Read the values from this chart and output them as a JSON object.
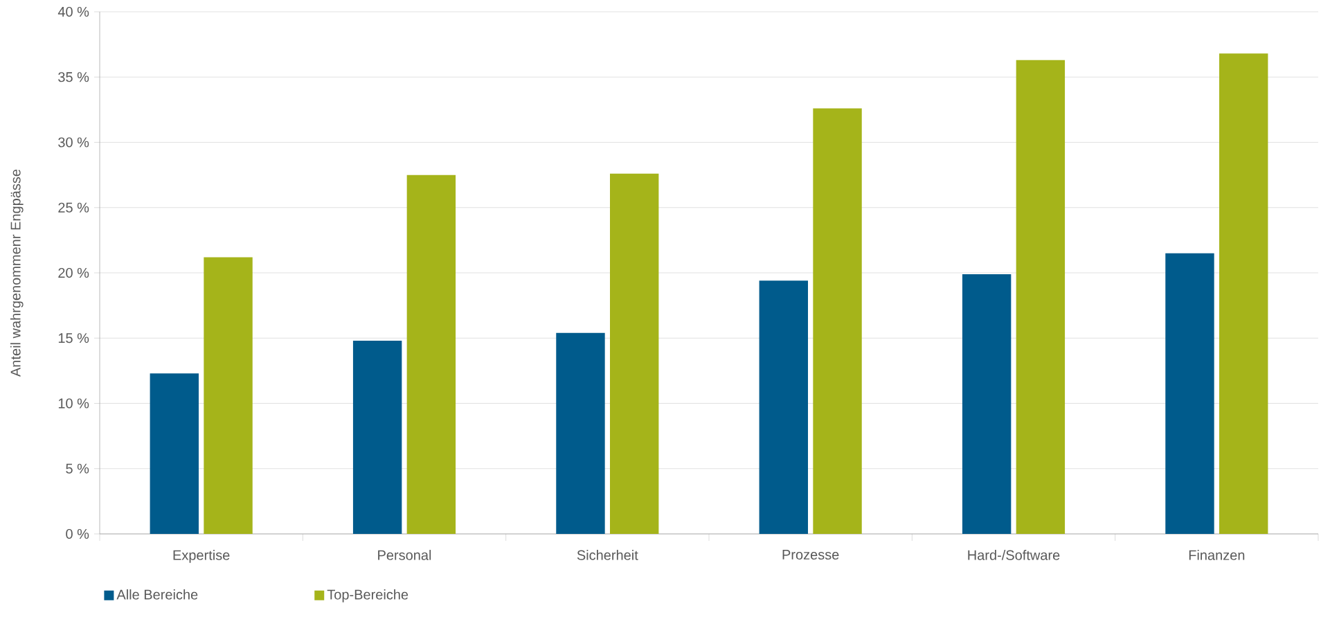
{
  "chart_data": {
    "type": "bar",
    "ylabel": "Anteil wahrgenommenr Engpässe",
    "categories": [
      "Expertise",
      "Personal",
      "Sicherheit",
      "Prozesse",
      "Hard-/Software",
      "Finanzen"
    ],
    "series": [
      {
        "name": "Alle Bereiche",
        "color": "#005b8c",
        "values": [
          12.3,
          14.8,
          15.4,
          19.4,
          19.9,
          21.5
        ]
      },
      {
        "name": "Top-Bereiche",
        "color": "#a5b41a",
        "values": [
          21.2,
          27.5,
          27.6,
          32.6,
          36.3,
          36.8
        ]
      }
    ],
    "ylim": [
      0,
      40
    ],
    "yticks": [
      {
        "value": 0,
        "label": "0 %"
      },
      {
        "value": 5,
        "label": "5 %"
      },
      {
        "value": 10,
        "label": "10 %"
      },
      {
        "value": 15,
        "label": "15 %"
      },
      {
        "value": 20,
        "label": "20 %"
      },
      {
        "value": 25,
        "label": "25 %"
      },
      {
        "value": 30,
        "label": "30 %"
      },
      {
        "value": 35,
        "label": "35 %"
      },
      {
        "value": 40,
        "label": "40 %"
      }
    ],
    "grid": "y",
    "legend": "bottom left"
  }
}
